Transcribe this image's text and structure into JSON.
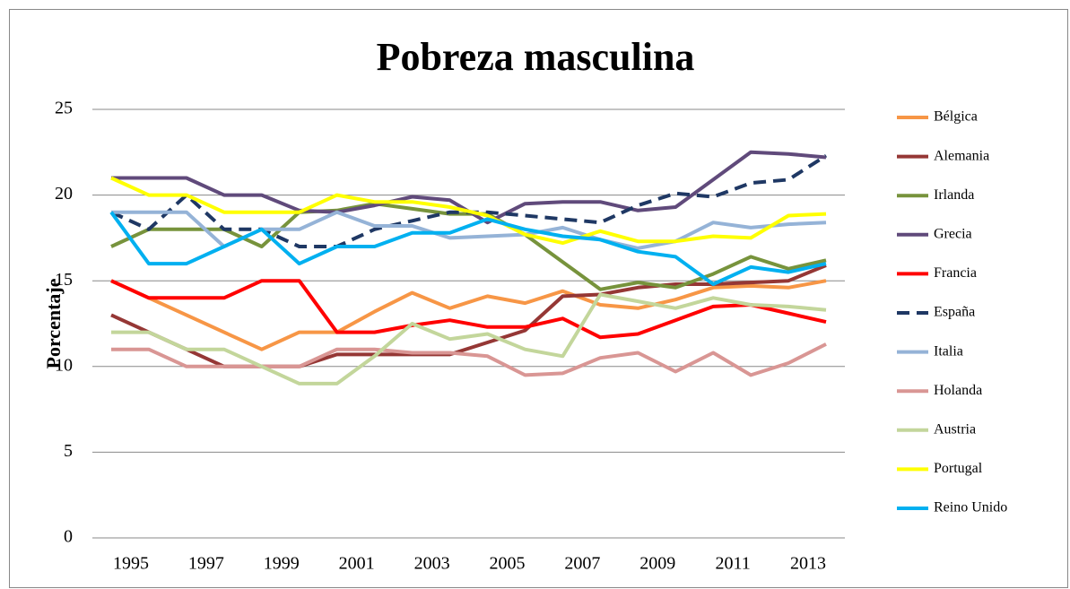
{
  "chart_data": {
    "type": "line",
    "title": "Pobreza masculina",
    "y_label": "Porcentaje",
    "categories": [
      "1995",
      null,
      "1997",
      null,
      "1999",
      null,
      "2001",
      null,
      "2003",
      null,
      "2005",
      null,
      "2007",
      null,
      "2009",
      null,
      "2011",
      null,
      "2013",
      null
    ],
    "ylim": [
      0,
      25
    ],
    "yticks": [
      0,
      5,
      10,
      15,
      20,
      25
    ],
    "grid": true,
    "legend": "right",
    "series": [
      {
        "name": "Bélgica",
        "color": "#f79646",
        "values": [
          15,
          14,
          13,
          12,
          11,
          12,
          12,
          13.2,
          14.3,
          13.4,
          14.1,
          13.7,
          14.4,
          13.6,
          13.4,
          13.9,
          14.6,
          14.7,
          14.6,
          15
        ]
      },
      {
        "name": "Alemania",
        "color": "#953735",
        "values": [
          13,
          12,
          11,
          10,
          10,
          10,
          10.7,
          10.7,
          10.7,
          10.7,
          11.4,
          12.1,
          14.1,
          14.2,
          14.6,
          14.8,
          14.8,
          14.9,
          15,
          15.9
        ]
      },
      {
        "name": "Irlanda",
        "color": "#77933c",
        "values": [
          17,
          18,
          18,
          18,
          17,
          19,
          19.1,
          19.5,
          19.2,
          18.9,
          18.9,
          17.7,
          16.1,
          14.5,
          14.9,
          14.6,
          15.4,
          16.4,
          15.7,
          16.2
        ]
      },
      {
        "name": "Grecia",
        "color": "#604a7b",
        "values": [
          21,
          21,
          21,
          20,
          20,
          19.1,
          19,
          19.4,
          19.9,
          19.7,
          18.4,
          19.5,
          19.6,
          19.6,
          19.1,
          19.3,
          20.9,
          22.5,
          22.4,
          22.2
        ]
      },
      {
        "name": "Francia",
        "color": "#ff0000",
        "values": [
          15,
          14,
          14,
          14,
          15,
          15,
          12,
          12,
          12.4,
          12.7,
          12.3,
          12.3,
          12.8,
          11.7,
          11.9,
          12.7,
          13.5,
          13.6,
          13.1,
          12.6
        ]
      },
      {
        "name": "España",
        "color": "#1f3864",
        "line_style": "dashed",
        "values": [
          19,
          18,
          20,
          18,
          18,
          17,
          17,
          18,
          18.5,
          19,
          19,
          18.8,
          18.6,
          18.4,
          19.4,
          20.1,
          19.9,
          20.7,
          20.9,
          22.3
        ]
      },
      {
        "name": "Italia",
        "color": "#95b3d7",
        "values": [
          19,
          19,
          19,
          17,
          18,
          18,
          19,
          18.2,
          18.2,
          17.5,
          17.6,
          17.7,
          18.1,
          17.4,
          16.9,
          17.3,
          18.4,
          18.1,
          18.3,
          18.4
        ]
      },
      {
        "name": "Holanda",
        "color": "#d99694",
        "values": [
          11,
          11,
          10,
          10,
          10,
          10,
          11,
          11,
          10.8,
          10.8,
          10.6,
          9.5,
          9.6,
          10.5,
          10.8,
          9.7,
          10.8,
          9.5,
          10.2,
          11.3
        ]
      },
      {
        "name": "Austria",
        "color": "#c3d69b",
        "values": [
          12,
          12,
          11,
          11,
          10,
          9,
          9,
          10.6,
          12.5,
          11.6,
          11.9,
          11,
          10.6,
          14.2,
          13.8,
          13.4,
          14,
          13.6,
          13.5,
          13.3
        ]
      },
      {
        "name": "Portugal",
        "color": "#ffff00",
        "values": [
          21,
          20,
          20,
          19,
          19,
          19,
          20,
          19.6,
          19.6,
          19.3,
          18.8,
          17.7,
          17.2,
          17.9,
          17.3,
          17.3,
          17.6,
          17.5,
          18.8,
          18.9
        ]
      },
      {
        "name": "Reino Unido",
        "color": "#00b0f0",
        "values": [
          19,
          16,
          16,
          17,
          18,
          16,
          17,
          17,
          17.8,
          17.8,
          18.6,
          18,
          17.6,
          17.4,
          16.7,
          16.4,
          14.8,
          15.8,
          15.5,
          16
        ]
      }
    ]
  }
}
